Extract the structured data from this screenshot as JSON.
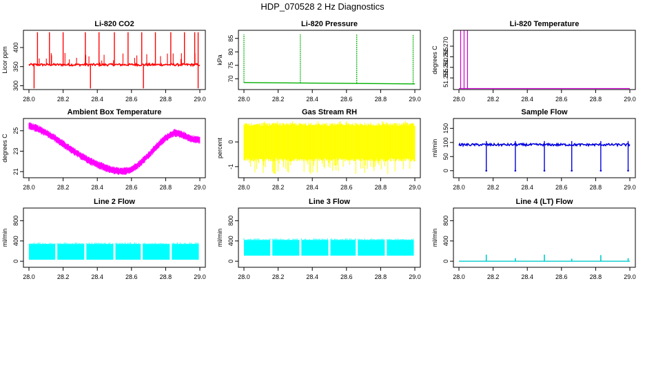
{
  "title": "HDP_070528  2 Hz Diagnostics",
  "chart_data": [
    {
      "type": "line",
      "title": "Li-820 CO2",
      "xlabel": "",
      "ylabel": "Licor ppm",
      "color": "#ff0000",
      "xlim": [
        28.0,
        29.0
      ],
      "ylim": [
        290,
        445
      ],
      "xticks": [
        "28.0",
        "28.2",
        "28.4",
        "28.6",
        "28.8",
        "29.0"
      ],
      "xtick_values": [
        28.0,
        28.2,
        28.4,
        28.6,
        28.8,
        29.0
      ],
      "yticks": [
        "300",
        "350",
        "400"
      ],
      "ytick_values": [
        300,
        350,
        400
      ],
      "series": [
        {
          "name": "CO2",
          "baseline": 355,
          "band": 3,
          "spikes_up_x": [
            28.05,
            28.12,
            28.2,
            28.33,
            28.41,
            28.5,
            28.58,
            28.66,
            28.74,
            28.83,
            28.91,
            28.97,
            28.99
          ],
          "spike_top": 440,
          "spikes_down_x": [
            28.03,
            28.36,
            28.67,
            28.99
          ],
          "spike_bottom": 293
        }
      ]
    },
    {
      "type": "line",
      "title": "Li-820 Pressure",
      "xlabel": "",
      "ylabel": "kPa",
      "color": "#00b000",
      "xlim": [
        28.0,
        29.0
      ],
      "ylim": [
        66,
        88
      ],
      "xticks": [
        "28.0",
        "28.2",
        "28.4",
        "28.6",
        "28.8",
        "29.0"
      ],
      "xtick_values": [
        28.0,
        28.2,
        28.4,
        28.6,
        28.8,
        29.0
      ],
      "yticks": [
        "70",
        "75",
        "80",
        "85"
      ],
      "ytick_values": [
        70,
        75,
        80,
        85
      ],
      "series": [
        {
          "name": "Pressure",
          "x": [
            28.0,
            29.0
          ],
          "y": [
            68.6,
            68.1
          ],
          "spikes_up_x": [
            28.0,
            28.33,
            28.66,
            28.99
          ],
          "spike_top": 86.5
        }
      ]
    },
    {
      "type": "line",
      "title": "Li-820 Temperature",
      "xlabel": "",
      "ylabel": "degrees C",
      "color": "#cc00cc",
      "xlim": [
        28.0,
        29.0
      ],
      "ylim": [
        51.2495,
        51.2775
      ],
      "xticks": [
        "28.0",
        "28.2",
        "28.4",
        "28.6",
        "28.8",
        "29.0"
      ],
      "xtick_values": [
        28.0,
        28.2,
        28.4,
        28.6,
        28.8,
        29.0
      ],
      "yticks": [
        "51.255",
        "51.260",
        "51.265",
        "51.270"
      ],
      "ytick_values": [
        51.255,
        51.26,
        51.265,
        51.27
      ],
      "series": [
        {
          "name": "Temperature",
          "x": [
            28.0,
            29.0
          ],
          "y": [
            51.25,
            51.25
          ],
          "spikes_up_x": [
            28.01,
            28.03,
            28.05
          ],
          "spike_top": 51.2775
        }
      ]
    },
    {
      "type": "line",
      "title": "Ambient Box Temperature",
      "xlabel": "",
      "ylabel": "degrees C",
      "color": "#ff00ff",
      "xlim": [
        28.0,
        29.0
      ],
      "ylim": [
        20.4,
        26.2
      ],
      "xticks": [
        "28.0",
        "28.2",
        "28.4",
        "28.6",
        "28.8",
        "29.0"
      ],
      "xtick_values": [
        28.0,
        28.2,
        28.4,
        28.6,
        28.8,
        29.0
      ],
      "yticks": [
        "21",
        "23",
        "25"
      ],
      "ytick_values": [
        21,
        23,
        25
      ],
      "series": [
        {
          "name": "Box Temp",
          "band": 0.35,
          "x": [
            28.0,
            28.05,
            28.1,
            28.15,
            28.2,
            28.25,
            28.3,
            28.35,
            28.4,
            28.45,
            28.5,
            28.55,
            28.6,
            28.65,
            28.7,
            28.75,
            28.8,
            28.85,
            28.9,
            28.95,
            29.0
          ],
          "y": [
            25.5,
            25.2,
            24.8,
            24.3,
            23.7,
            23.1,
            22.6,
            22.1,
            21.7,
            21.35,
            21.1,
            21.0,
            21.2,
            21.8,
            22.6,
            23.5,
            24.3,
            24.8,
            24.6,
            24.2,
            24.1
          ]
        }
      ]
    },
    {
      "type": "line",
      "title": "Gas Stream RH",
      "xlabel": "",
      "ylabel": "percent",
      "color": "#ffff00",
      "xlim": [
        28.0,
        29.0
      ],
      "ylim": [
        -1.45,
        0.95
      ],
      "xticks": [
        "28.0",
        "28.2",
        "28.4",
        "28.6",
        "28.8",
        "29.0"
      ],
      "xtick_values": [
        28.0,
        28.2,
        28.4,
        28.6,
        28.8,
        29.0
      ],
      "yticks": [
        "-1",
        "0"
      ],
      "ytick_values": [
        -1,
        0
      ],
      "series": [
        {
          "name": "RH",
          "band_low": -0.65,
          "band_high": 0.65,
          "noise_low": -1.3,
          "noise_high": 0.85
        }
      ]
    },
    {
      "type": "line",
      "title": "Sample Flow",
      "xlabel": "",
      "ylabel": "ml/min",
      "color": "#0000dd",
      "xlim": [
        28.0,
        29.0
      ],
      "ylim": [
        -25,
        185
      ],
      "xticks": [
        "28.0",
        "28.2",
        "28.4",
        "28.6",
        "28.8",
        "29.0"
      ],
      "xtick_values": [
        28.0,
        28.2,
        28.4,
        28.6,
        28.8,
        29.0
      ],
      "yticks": [
        "0",
        "50",
        "100",
        "150"
      ],
      "ytick_values": [
        0,
        50,
        100,
        150
      ],
      "series": [
        {
          "name": "Sample Flow",
          "baseline": 92,
          "band": 4,
          "spikes_down_x": [
            28.16,
            28.33,
            28.5,
            28.66,
            28.83,
            28.99
          ],
          "spike_bottom": 0,
          "spike_top": 105
        }
      ]
    },
    {
      "type": "area",
      "title": "Line 2 Flow",
      "xlabel": "",
      "ylabel": "ml/min",
      "color": "#00ffff",
      "xlim": [
        28.0,
        29.0
      ],
      "ylim": [
        -120,
        1050
      ],
      "xticks": [
        "28.0",
        "28.2",
        "28.4",
        "28.6",
        "28.8",
        "29.0"
      ],
      "xtick_values": [
        28.0,
        28.2,
        28.4,
        28.6,
        28.8,
        29.0
      ],
      "yticks": [
        "0",
        "400",
        "800"
      ],
      "ytick_values": [
        0,
        400,
        800
      ],
      "series": [
        {
          "name": "Line 2 Flow",
          "low": 30,
          "high": 340,
          "gaps_x": [
            28.16,
            28.33,
            28.5,
            28.66,
            28.83
          ]
        }
      ]
    },
    {
      "type": "area",
      "title": "Line 3 Flow",
      "xlabel": "",
      "ylabel": "ml/min",
      "color": "#00ffff",
      "xlim": [
        28.0,
        29.0
      ],
      "ylim": [
        -120,
        1050
      ],
      "xticks": [
        "28.0",
        "28.2",
        "28.4",
        "28.6",
        "28.8",
        "29.0"
      ],
      "xtick_values": [
        28.0,
        28.2,
        28.4,
        28.6,
        28.8,
        29.0
      ],
      "yticks": [
        "0",
        "400",
        "800"
      ],
      "ytick_values": [
        0,
        400,
        800
      ],
      "series": [
        {
          "name": "Line 3 Flow",
          "low": 110,
          "high": 420,
          "gaps_x": [
            28.16,
            28.33,
            28.5,
            28.66,
            28.83
          ]
        }
      ]
    },
    {
      "type": "line",
      "title": "Line 4 (LT) Flow",
      "xlabel": "",
      "ylabel": "ml/min",
      "color": "#00cccc",
      "xlim": [
        28.0,
        29.0
      ],
      "ylim": [
        -120,
        1050
      ],
      "xticks": [
        "28.0",
        "28.2",
        "28.4",
        "28.6",
        "28.8",
        "29.0"
      ],
      "xtick_values": [
        28.0,
        28.2,
        28.4,
        28.6,
        28.8,
        29.0
      ],
      "yticks": [
        "0",
        "400",
        "800"
      ],
      "ytick_values": [
        0,
        400,
        800
      ],
      "series": [
        {
          "name": "Line 4 Flow",
          "baseline": 0,
          "spikes_up_x": [
            28.16,
            28.33,
            28.5,
            28.66,
            28.83,
            28.99
          ],
          "spike_tops": [
            130,
            60,
            130,
            50,
            120,
            60
          ]
        }
      ]
    }
  ]
}
